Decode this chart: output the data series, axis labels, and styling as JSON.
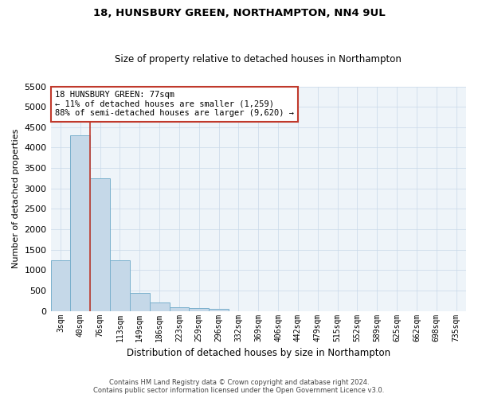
{
  "title": "18, HUNSBURY GREEN, NORTHAMPTON, NN4 9UL",
  "subtitle": "Size of property relative to detached houses in Northampton",
  "xlabel": "Distribution of detached houses by size in Northampton",
  "ylabel": "Number of detached properties",
  "footer_line1": "Contains HM Land Registry data © Crown copyright and database right 2024.",
  "footer_line2": "Contains public sector information licensed under the Open Government Licence v3.0.",
  "annotation_title": "18 HUNSBURY GREEN: 77sqm",
  "annotation_line1": "← 11% of detached houses are smaller (1,259)",
  "annotation_line2": "88% of semi-detached houses are larger (9,620) →",
  "bar_color": "#c5d8e8",
  "bar_edge_color": "#7ab0cc",
  "vline_color": "#c0392b",
  "annotation_box_edgecolor": "#c0392b",
  "grid_color": "#c8d8e8",
  "background_color": "#ffffff",
  "plot_bg_color": "#eef4f9",
  "categories": [
    "3sqm",
    "40sqm",
    "76sqm",
    "113sqm",
    "149sqm",
    "186sqm",
    "223sqm",
    "259sqm",
    "296sqm",
    "332sqm",
    "369sqm",
    "406sqm",
    "442sqm",
    "479sqm",
    "515sqm",
    "552sqm",
    "589sqm",
    "625sqm",
    "662sqm",
    "698sqm",
    "735sqm"
  ],
  "values": [
    1250,
    4300,
    3250,
    1250,
    450,
    200,
    100,
    70,
    50,
    0,
    0,
    0,
    0,
    0,
    0,
    0,
    0,
    0,
    0,
    0,
    0
  ],
  "ylim": [
    0,
    5500
  ],
  "yticks": [
    0,
    500,
    1000,
    1500,
    2000,
    2500,
    3000,
    3500,
    4000,
    4500,
    5000,
    5500
  ],
  "vline_x": 1.5,
  "figsize": [
    6.0,
    5.0
  ],
  "dpi": 100
}
